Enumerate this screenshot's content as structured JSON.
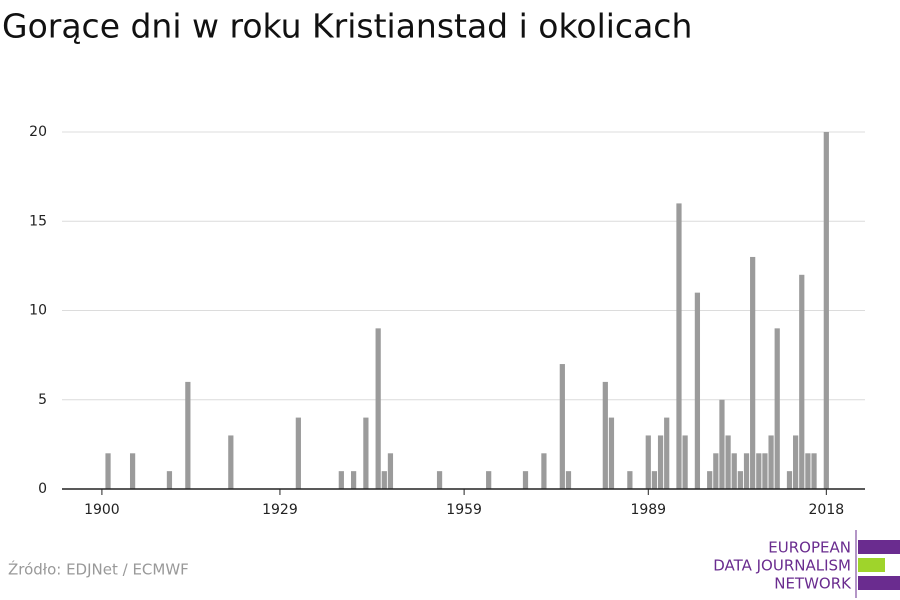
{
  "chart_data": {
    "type": "bar",
    "title": "Gorące dni w roku Kristianstad i okolicach",
    "source": "Źródło: EDJNet / ECMWF",
    "logo": [
      "EUROPEAN",
      "DATA JOURNALISM",
      "NETWORK"
    ],
    "x": [
      1901,
      1905,
      1911,
      1914,
      1921,
      1932,
      1939,
      1941,
      1943,
      1945,
      1946,
      1947,
      1955,
      1963,
      1969,
      1972,
      1975,
      1976,
      1982,
      1983,
      1986,
      1989,
      1990,
      1991,
      1992,
      1994,
      1995,
      1997,
      1999,
      2000,
      2001,
      2002,
      2003,
      2004,
      2005,
      2006,
      2007,
      2008,
      2009,
      2010,
      2012,
      2013,
      2014,
      2015,
      2016,
      2018
    ],
    "values": [
      2,
      2,
      1,
      6,
      3,
      4,
      1,
      1,
      4,
      9,
      1,
      2,
      1,
      1,
      1,
      2,
      7,
      1,
      6,
      4,
      1,
      3,
      1,
      3,
      4,
      16,
      3,
      11,
      1,
      2,
      5,
      3,
      2,
      1,
      2,
      13,
      2,
      2,
      3,
      9,
      1,
      3,
      12,
      2,
      2,
      20
    ],
    "color": "#9b9b9b",
    "xlim": [
      1893.5,
      2024.3
    ],
    "xticks": [
      1900,
      1929,
      1959,
      1989,
      2018
    ],
    "ylim": [
      0,
      20
    ],
    "yticks": [
      0,
      5,
      10,
      15,
      20
    ],
    "grid": true
  }
}
